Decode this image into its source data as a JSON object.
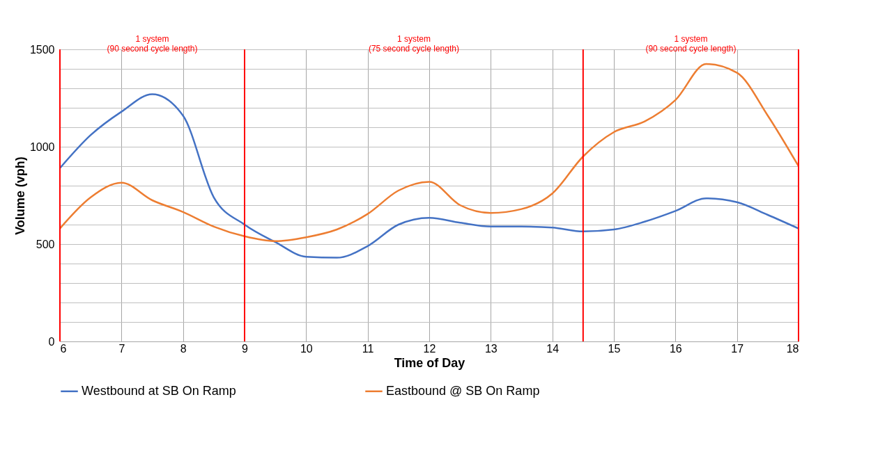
{
  "chart_data": {
    "type": "line",
    "xlabel": "Time of Day",
    "ylabel": "Volume (vph)",
    "x": [
      6,
      6.5,
      7,
      7.5,
      8,
      8.5,
      9,
      9.5,
      10,
      10.5,
      11,
      11.5,
      12,
      12.5,
      13,
      13.5,
      14,
      14.5,
      15,
      15.5,
      16,
      16.5,
      17,
      17.5,
      18
    ],
    "series": [
      {
        "name": "Westbound at SB On Ramp",
        "color": "#4472c4",
        "values": [
          890,
          1060,
          1180,
          1270,
          1160,
          740,
          600,
          510,
          435,
          430,
          490,
          600,
          635,
          610,
          590,
          590,
          585,
          565,
          575,
          615,
          670,
          735,
          715,
          650,
          580
        ]
      },
      {
        "name": "Eastbound @ SB On Ramp",
        "color": "#ed7d31",
        "values": [
          580,
          740,
          815,
          725,
          665,
          590,
          540,
          515,
          535,
          575,
          655,
          775,
          820,
          700,
          660,
          680,
          760,
          950,
          1075,
          1130,
          1240,
          1425,
          1380,
          1160,
          900
        ]
      }
    ],
    "xlim": [
      6,
      18
    ],
    "xticks": [
      6,
      7,
      8,
      9,
      10,
      11,
      12,
      13,
      14,
      15,
      16,
      17,
      18
    ],
    "ylim": [
      0,
      1500
    ],
    "yticks": [
      0,
      {
        "value": 100,
        "label": null
      },
      {
        "value": 200,
        "label": null
      },
      {
        "value": 300,
        "label": null
      },
      {
        "value": 400,
        "label": null
      },
      500,
      {
        "value": 600,
        "label": null
      },
      {
        "value": 700,
        "label": null
      },
      {
        "value": 800,
        "label": null
      },
      {
        "value": 900,
        "label": null
      },
      1000,
      {
        "value": 1100,
        "label": null
      },
      {
        "value": 1200,
        "label": null
      },
      {
        "value": 1300,
        "label": null
      },
      {
        "value": 1400,
        "label": null
      },
      1500
    ],
    "ref_lines": [
      {
        "axis": "x",
        "value": 6,
        "color": "#ff0000"
      },
      {
        "axis": "x",
        "value": 9,
        "color": "#ff0000"
      },
      {
        "axis": "x",
        "value": 14.5,
        "color": "#ff0000"
      },
      {
        "axis": "x",
        "value": 18,
        "color": "#ff0000"
      }
    ],
    "annotations": [
      "1 system\n(90 second cycle length)",
      "1 system\n(75 second cycle length)",
      "1 system\n(90 second cycle length)"
    ],
    "grid": true,
    "legend": "bottom",
    "marker": "none",
    "line_style": "solid"
  }
}
